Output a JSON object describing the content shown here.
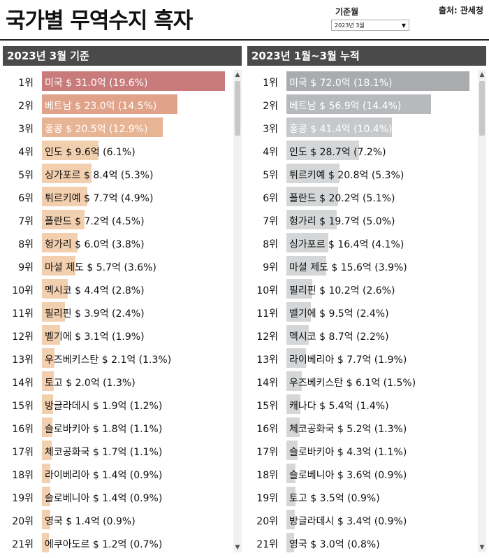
{
  "header": {
    "title": "국가별 무역수지 흑자",
    "month_label": "기준월",
    "month_value": "2023년 3월",
    "source": "출처: 관세청"
  },
  "chart_data": [
    {
      "type": "bar",
      "title": "2023년 3월 기준",
      "ranks": [
        "1위",
        "2위",
        "3위",
        "4위",
        "5위",
        "6위",
        "7위",
        "8위",
        "9위",
        "10위",
        "11위",
        "12위",
        "13위",
        "14위",
        "15위",
        "16위",
        "17위",
        "18위",
        "19위",
        "20위",
        "21위"
      ],
      "labels": [
        "미국 $ 31.0억 (19.6%)",
        "베트남 $ 23.0억 (14.5%)",
        "홍콩 $ 20.5억 (12.9%)",
        "인도 $ 9.6억 (6.1%)",
        "싱가포르 $ 8.4억 (5.3%)",
        "튀르키예 $ 7.7억 (4.9%)",
        "폴란드 $ 7.2억 (4.5%)",
        "헝가리 $ 6.0억 (3.8%)",
        "마셜 제도 $ 5.7억 (3.6%)",
        "멕시코 $ 4.4억 (2.8%)",
        "필리핀 $ 3.9억 (2.4%)",
        "벨기에 $ 3.1억 (1.9%)",
        "우즈베키스탄 $ 2.1억 (1.3%)",
        "토고 $ 2.0억 (1.3%)",
        "방글라데시 $ 1.9억 (1.2%)",
        "슬로바키아 $ 1.8억 (1.1%)",
        "체코공화국 $ 1.7억 (1.1%)",
        "라이베리아 $ 1.4억 (0.9%)",
        "슬로베니아 $ 1.4억 (0.9%)",
        "영국 $ 1.4억 (0.9%)",
        "에쿠아도르 $ 1.2억 (0.7%)"
      ],
      "values": [
        31.0,
        23.0,
        20.5,
        9.6,
        8.4,
        7.7,
        7.2,
        6.0,
        5.7,
        4.4,
        3.9,
        3.1,
        2.1,
        2.0,
        1.9,
        1.8,
        1.7,
        1.4,
        1.4,
        1.4,
        1.2
      ],
      "colors": [
        "#c97b7b",
        "#e0a288",
        "#e8b594",
        "#f2cfae",
        "#f2cfae",
        "#f2cfae",
        "#f2cfae",
        "#f2cfae",
        "#f2cfae",
        "#f2cfae",
        "#f2cfae",
        "#f2cfae",
        "#f2cfae",
        "#f2cfae",
        "#f2cfae",
        "#f2cfae",
        "#f2cfae",
        "#f2cfae",
        "#f2cfae",
        "#f2cfae",
        "#f2cfae"
      ]
    },
    {
      "type": "bar",
      "title": "2023년 1월~3월 누적",
      "ranks": [
        "1위",
        "2위",
        "3위",
        "4위",
        "5위",
        "6위",
        "7위",
        "8위",
        "9위",
        "10위",
        "11위",
        "12위",
        "13위",
        "14위",
        "15위",
        "16위",
        "17위",
        "18위",
        "19위",
        "20위",
        "21위"
      ],
      "labels": [
        "미국 $ 72.0억 (18.1%)",
        "베트남 $ 56.9억 (14.4%)",
        "홍콩 $ 41.4억 (10.4%)",
        "인도 $ 28.7억 (7.2%)",
        "튀르키예 $ 20.8억 (5.3%)",
        "폴란드 $ 20.2억 (5.1%)",
        "헝가리 $ 19.7억 (5.0%)",
        "싱가포르 $ 16.4억 (4.1%)",
        "마셜 제도 $ 15.6억 (3.9%)",
        "필리핀 $ 10.2억 (2.6%)",
        "벨기에 $ 9.5억 (2.4%)",
        "멕시코 $ 8.7억 (2.2%)",
        "라이베리아 $ 7.7억 (1.9%)",
        "우즈베키스탄 $ 6.1억 (1.5%)",
        "캐나다 $ 5.4억 (1.4%)",
        "체코공화국 $ 5.2억 (1.3%)",
        "슬로바키아 $ 4.3억 (1.1%)",
        "슬로베니아 $ 3.6억 (0.9%)",
        "토고 $ 3.5억 (0.9%)",
        "방글라데시 $ 3.4억 (0.9%)",
        "영국 $ 3.0억 (0.8%)"
      ],
      "values": [
        72.0,
        56.9,
        41.4,
        28.7,
        20.8,
        20.2,
        19.7,
        16.4,
        15.6,
        10.2,
        9.5,
        8.7,
        7.7,
        6.1,
        5.4,
        5.2,
        4.3,
        3.6,
        3.5,
        3.4,
        3.0
      ],
      "colors": [
        "#a9abae",
        "#b7b9bc",
        "#c6c8ca",
        "#d4d6d8",
        "#d4d6d8",
        "#d4d6d8",
        "#d4d6d8",
        "#d4d6d8",
        "#d4d6d8",
        "#d4d6d8",
        "#d4d6d8",
        "#d4d6d8",
        "#d4d6d8",
        "#d4d6d8",
        "#d4d6d8",
        "#d4d6d8",
        "#d4d6d8",
        "#d4d6d8",
        "#d4d6d8",
        "#d4d6d8",
        "#d4d6d8"
      ]
    }
  ]
}
